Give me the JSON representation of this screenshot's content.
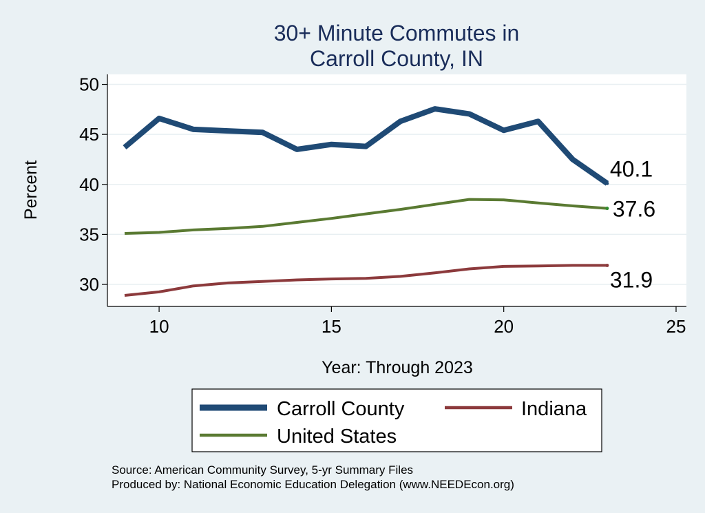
{
  "chart_data": {
    "type": "line",
    "title": [
      "30+ Minute Commutes in",
      "Carroll County, IN"
    ],
    "xlabel": "Year: Through 2023",
    "ylabel": "Percent",
    "xlim": [
      8.5,
      25.3
    ],
    "ylim": [
      27.8,
      51
    ],
    "xticks": [
      10,
      15,
      20,
      25
    ],
    "yticks": [
      30,
      35,
      40,
      45,
      50
    ],
    "grid": true,
    "legend_position": "bottom",
    "series": [
      {
        "name": "Carroll County",
        "color": "#1f4a75",
        "x": [
          9,
          10,
          11,
          12,
          13,
          14,
          15,
          16,
          17,
          18,
          19,
          20,
          21,
          22,
          23
        ],
        "values": [
          43.7,
          46.6,
          45.5,
          45.35,
          45.2,
          43.5,
          44.0,
          43.8,
          46.3,
          47.55,
          47.05,
          45.4,
          46.3,
          42.5,
          40.1
        ],
        "end_label": "40.1"
      },
      {
        "name": "Indiana",
        "color": "#8c3a3c",
        "x": [
          9,
          10,
          11,
          12,
          13,
          14,
          15,
          16,
          17,
          18,
          19,
          20,
          21,
          22,
          23
        ],
        "values": [
          28.9,
          29.25,
          29.85,
          30.15,
          30.3,
          30.45,
          30.55,
          30.6,
          30.8,
          31.15,
          31.55,
          31.8,
          31.85,
          31.9,
          31.9
        ],
        "end_label": "31.9"
      },
      {
        "name": "United States",
        "color": "#5a7a32",
        "x": [
          9,
          10,
          11,
          12,
          13,
          14,
          15,
          16,
          17,
          18,
          19,
          20,
          21,
          22,
          23
        ],
        "values": [
          35.1,
          35.2,
          35.45,
          35.6,
          35.8,
          36.2,
          36.6,
          37.05,
          37.5,
          38.0,
          38.5,
          38.45,
          38.15,
          37.85,
          37.6
        ],
        "end_label": "37.6"
      }
    ],
    "source_lines": [
      "Source: American Community Survey, 5-yr Summary Files",
      "Produced by: National Economic Education Delegation (www.NEEDEcon.org)"
    ]
  }
}
